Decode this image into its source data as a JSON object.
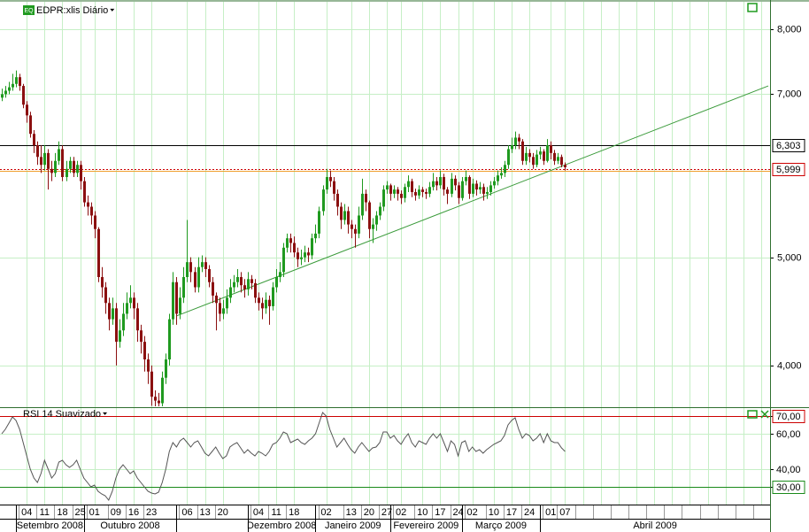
{
  "chart_data": [
    {
      "type": "candlestick",
      "title": "EDPR:xlis Diário",
      "log_scale": true,
      "grid": true,
      "up_color": "#1f9a1f",
      "down_color": "#8b1010",
      "categories": [
        null,
        null,
        null,
        null,
        null,
        null,
        null,
        "04",
        null,
        null,
        null,
        null,
        "11",
        null,
        null,
        null,
        null,
        "18",
        null,
        null,
        null,
        null,
        "25",
        null,
        null,
        null,
        "01",
        null,
        null,
        null,
        null,
        null,
        "09",
        null,
        null,
        null,
        null,
        "16",
        null,
        null,
        null,
        null,
        "23",
        null,
        null,
        null,
        null,
        null,
        null,
        null,
        null,
        null,
        "06",
        null,
        null,
        null,
        null,
        "13",
        null,
        null,
        null,
        null,
        "20",
        null,
        null,
        null,
        null,
        null,
        null,
        null,
        null,
        null,
        "04",
        null,
        null,
        null,
        null,
        "11",
        null,
        null,
        null,
        null,
        "18",
        null,
        null,
        null,
        null,
        null,
        null,
        null,
        null,
        "02",
        null,
        null,
        null,
        null,
        null,
        null,
        "13",
        null,
        null,
        null,
        null,
        "20",
        null,
        null,
        null,
        null,
        "27",
        null,
        null,
        null,
        "02",
        null,
        null,
        null,
        null,
        null,
        "10",
        null,
        null,
        null,
        null,
        "17",
        null,
        null,
        null,
        null,
        "24",
        null,
        null,
        null,
        "02",
        null,
        null,
        null,
        null,
        null,
        "10",
        null,
        null,
        null,
        null,
        "17",
        null,
        null,
        null,
        null,
        "24",
        null,
        null,
        null,
        null,
        null,
        "01",
        null,
        null,
        null,
        "07",
        null,
        null,
        null,
        null,
        null,
        null,
        null,
        null,
        null,
        null,
        null,
        null,
        null,
        null,
        null,
        null,
        null,
        null,
        null,
        null,
        null,
        null,
        null,
        null,
        null,
        null,
        null,
        null,
        null,
        null,
        null,
        null,
        null,
        null,
        null,
        null,
        null,
        null,
        null,
        null,
        null,
        null,
        null,
        null,
        null,
        null,
        null,
        null,
        null,
        null,
        null,
        null,
        null,
        null,
        null,
        null,
        null
      ],
      "months": [
        "Setembro 2008",
        "Outubro 2008",
        null,
        "Dezembro 2008",
        "Janeiro 2009",
        "Fevereiro 2009",
        "Março 2009",
        "Abril 2009"
      ],
      "open": [
        6.95,
        7.0,
        7.05,
        7.1,
        7.15,
        7.25,
        7.12,
        6.85,
        6.7,
        6.45,
        6.3,
        6.15,
        6.05,
        6.2,
        6.0,
        5.95,
        6.1,
        6.25,
        5.9,
        6.0,
        6.1,
        5.95,
        6.05,
        5.85,
        5.6,
        5.55,
        5.45,
        5.3,
        4.8,
        4.7,
        4.55,
        4.4,
        4.5,
        4.2,
        4.3,
        4.45,
        4.55,
        4.6,
        4.5,
        4.3,
        4.2,
        4.05,
        3.95,
        3.75,
        3.72,
        3.7,
        3.9,
        4.05,
        4.4,
        4.75,
        4.45,
        4.6,
        4.8,
        4.95,
        4.85,
        4.7,
        4.9,
        4.95,
        4.88,
        4.75,
        4.62,
        4.55,
        4.45,
        4.5,
        4.6,
        4.7,
        4.75,
        4.8,
        4.72,
        4.68,
        4.78,
        4.74,
        4.6,
        4.55,
        4.5,
        4.58,
        4.52,
        4.7,
        4.8,
        4.85,
        5.1,
        5.2,
        5.15,
        5.05,
        4.98,
        5.0,
        5.05,
        5.02,
        5.2,
        5.25,
        5.5,
        5.75,
        5.9,
        5.85,
        5.7,
        5.55,
        5.4,
        5.5,
        5.35,
        5.3,
        5.25,
        5.45,
        5.7,
        5.6,
        5.3,
        5.35,
        5.45,
        5.55,
        5.75,
        5.8,
        5.7,
        5.75,
        5.7,
        5.65,
        5.78,
        5.85,
        5.72,
        5.68,
        5.75,
        5.72,
        5.7,
        5.78,
        5.85,
        5.8,
        5.9,
        5.75,
        5.7,
        5.88,
        5.8,
        5.65,
        5.85,
        5.9,
        5.7,
        5.82,
        5.75,
        5.78,
        5.7,
        5.72,
        5.8,
        5.85,
        5.92,
        5.95,
        6.05,
        6.25,
        6.3,
        6.4,
        6.35,
        6.1,
        6.2,
        6.15,
        6.05,
        6.18,
        6.22,
        6.1,
        6.3,
        6.2,
        6.1,
        6.15,
        6.05,
        null,
        null,
        null,
        null,
        null,
        null,
        null,
        null,
        null,
        null,
        null,
        null,
        null,
        null,
        null,
        null,
        null,
        null,
        null,
        null,
        null,
        null,
        null,
        null,
        null,
        null,
        null,
        null,
        null,
        null,
        null,
        null,
        null,
        null,
        null,
        null,
        null,
        null,
        null,
        null,
        null,
        null,
        null,
        null,
        null,
        null,
        null,
        null,
        null,
        null,
        null,
        null,
        null,
        null,
        null,
        null,
        null
      ],
      "high": [
        7.08,
        7.12,
        7.18,
        7.3,
        7.35,
        7.3,
        7.15,
        6.9,
        6.75,
        6.5,
        6.35,
        6.3,
        6.3,
        6.25,
        6.1,
        6.2,
        6.35,
        6.3,
        6.1,
        6.15,
        6.15,
        6.1,
        6.1,
        5.9,
        5.68,
        5.6,
        5.5,
        5.32,
        4.9,
        4.75,
        4.6,
        4.6,
        4.55,
        4.4,
        4.55,
        4.65,
        4.72,
        4.65,
        4.55,
        4.35,
        4.25,
        4.1,
        4.0,
        3.8,
        3.78,
        3.95,
        4.1,
        4.45,
        4.85,
        4.8,
        4.7,
        4.9,
        5.4,
        5.0,
        4.9,
        5.0,
        5.02,
        5.0,
        4.92,
        4.8,
        4.65,
        4.6,
        4.58,
        4.68,
        4.78,
        4.82,
        4.88,
        4.85,
        4.78,
        4.85,
        4.82,
        4.78,
        4.65,
        4.6,
        4.65,
        4.62,
        4.75,
        4.88,
        4.95,
        5.15,
        5.25,
        5.25,
        5.22,
        5.1,
        5.08,
        5.12,
        5.1,
        5.25,
        5.35,
        5.55,
        5.8,
        6.0,
        5.98,
        5.9,
        5.75,
        5.6,
        5.58,
        5.55,
        5.4,
        5.35,
        5.55,
        5.88,
        5.75,
        5.62,
        5.42,
        5.5,
        5.6,
        5.8,
        5.85,
        5.82,
        5.8,
        5.78,
        5.74,
        5.82,
        5.92,
        5.88,
        5.76,
        5.8,
        5.78,
        5.76,
        5.84,
        5.95,
        5.9,
        5.98,
        5.94,
        5.78,
        5.95,
        5.92,
        5.84,
        5.9,
        5.98,
        5.92,
        5.88,
        5.86,
        5.84,
        5.82,
        5.78,
        5.85,
        5.9,
        5.98,
        6.02,
        6.1,
        6.3,
        6.4,
        6.48,
        6.45,
        6.38,
        6.28,
        6.25,
        6.2,
        6.24,
        6.28,
        6.25,
        6.38,
        6.35,
        6.24,
        6.2,
        6.18,
        6.08,
        null,
        null,
        null,
        null,
        null,
        null,
        null,
        null,
        null,
        null,
        null,
        null,
        null,
        null,
        null,
        null,
        null,
        null,
        null,
        null,
        null,
        null,
        null,
        null,
        null,
        null,
        null,
        null,
        null,
        null,
        null,
        null,
        null,
        null,
        null,
        null,
        null,
        null,
        null,
        null,
        null,
        null,
        null,
        null,
        null,
        null,
        null,
        null,
        null,
        null,
        null,
        null,
        null,
        null,
        null,
        null,
        null
      ],
      "low": [
        6.9,
        6.95,
        7.0,
        7.05,
        7.1,
        7.05,
        6.8,
        6.6,
        6.4,
        6.2,
        6.05,
        5.95,
        5.98,
        5.75,
        5.85,
        5.9,
        6.05,
        5.85,
        5.85,
        5.95,
        5.9,
        5.9,
        5.75,
        5.55,
        5.45,
        5.35,
        5.2,
        4.75,
        4.6,
        4.45,
        4.3,
        4.35,
        4.0,
        4.15,
        4.25,
        4.4,
        4.5,
        4.4,
        4.2,
        4.1,
        3.95,
        3.85,
        3.68,
        3.66,
        3.6,
        3.65,
        3.85,
        4.0,
        4.35,
        4.35,
        4.4,
        4.55,
        4.75,
        4.75,
        4.65,
        4.65,
        4.85,
        4.8,
        4.7,
        4.55,
        4.3,
        4.38,
        4.4,
        4.45,
        4.55,
        4.65,
        4.7,
        4.65,
        4.6,
        4.62,
        4.68,
        4.55,
        4.48,
        4.4,
        4.45,
        4.35,
        4.48,
        4.65,
        4.75,
        4.8,
        5.05,
        5.05,
        5.0,
        4.9,
        4.92,
        4.95,
        4.95,
        4.98,
        5.15,
        5.2,
        5.45,
        5.7,
        5.78,
        5.62,
        5.45,
        5.3,
        5.35,
        5.25,
        5.2,
        5.1,
        5.2,
        5.4,
        5.5,
        5.2,
        5.15,
        5.28,
        5.4,
        5.5,
        5.7,
        5.62,
        5.65,
        5.62,
        5.58,
        5.6,
        5.72,
        5.66,
        5.62,
        5.64,
        5.66,
        5.64,
        5.66,
        5.74,
        5.74,
        5.76,
        5.68,
        5.58,
        5.66,
        5.74,
        5.58,
        5.62,
        5.8,
        5.64,
        5.66,
        5.68,
        5.7,
        5.62,
        5.64,
        5.68,
        5.76,
        5.8,
        5.88,
        5.9,
        6.0,
        6.2,
        6.25,
        6.25,
        6.05,
        6.05,
        6.08,
        6.0,
        6.02,
        6.12,
        6.05,
        6.08,
        6.12,
        6.05,
        6.06,
        6.02,
        5.98,
        null,
        null,
        null,
        null,
        null,
        null,
        null,
        null,
        null,
        null,
        null,
        null,
        null,
        null,
        null,
        null,
        null,
        null,
        null,
        null,
        null,
        null,
        null,
        null,
        null,
        null,
        null,
        null,
        null,
        null,
        null,
        null,
        null,
        null,
        null,
        null,
        null,
        null,
        null,
        null,
        null,
        null,
        null,
        null,
        null,
        null,
        null,
        null,
        null,
        null,
        null,
        null,
        null,
        null,
        null,
        null,
        null
      ],
      "close": [
        7.0,
        7.05,
        7.1,
        7.15,
        7.25,
        7.12,
        6.85,
        6.7,
        6.45,
        6.3,
        6.15,
        6.05,
        6.2,
        6.0,
        5.95,
        6.1,
        6.25,
        5.9,
        6.0,
        6.1,
        5.95,
        6.05,
        5.85,
        5.6,
        5.55,
        5.45,
        5.3,
        4.8,
        4.7,
        4.55,
        4.4,
        4.5,
        4.2,
        4.3,
        4.45,
        4.55,
        4.6,
        4.5,
        4.3,
        4.2,
        4.05,
        3.95,
        3.75,
        3.72,
        3.7,
        3.9,
        4.05,
        4.4,
        4.75,
        4.45,
        4.6,
        4.8,
        4.95,
        4.85,
        4.7,
        4.9,
        4.95,
        4.88,
        4.75,
        4.62,
        4.55,
        4.45,
        4.5,
        4.6,
        4.7,
        4.75,
        4.8,
        4.72,
        4.68,
        4.78,
        4.74,
        4.6,
        4.55,
        4.5,
        4.58,
        4.52,
        4.7,
        4.8,
        4.85,
        5.1,
        5.2,
        5.15,
        5.05,
        4.98,
        5.0,
        5.05,
        5.02,
        5.2,
        5.25,
        5.5,
        5.75,
        5.9,
        5.85,
        5.7,
        5.55,
        5.4,
        5.5,
        5.35,
        5.3,
        5.25,
        5.45,
        5.7,
        5.6,
        5.3,
        5.35,
        5.45,
        5.55,
        5.75,
        5.8,
        5.7,
        5.75,
        5.7,
        5.65,
        5.78,
        5.85,
        5.72,
        5.68,
        5.75,
        5.72,
        5.7,
        5.78,
        5.85,
        5.8,
        5.9,
        5.75,
        5.7,
        5.88,
        5.8,
        5.65,
        5.85,
        5.9,
        5.7,
        5.82,
        5.75,
        5.78,
        5.7,
        5.72,
        5.8,
        5.85,
        5.92,
        5.95,
        6.05,
        6.25,
        6.3,
        6.4,
        6.35,
        6.1,
        6.2,
        6.15,
        6.05,
        6.18,
        6.22,
        6.1,
        6.3,
        6.2,
        6.1,
        6.15,
        6.05,
        6.02,
        null,
        null,
        null,
        null,
        null,
        null,
        null,
        null,
        null,
        null,
        null,
        null,
        null,
        null,
        null,
        null,
        null,
        null,
        null,
        null,
        null,
        null,
        null,
        null,
        null,
        null,
        null,
        null,
        null,
        null,
        null,
        null,
        null,
        null,
        null,
        null,
        null,
        null,
        null,
        null,
        null,
        null,
        null,
        null,
        null,
        null,
        null,
        null,
        null,
        null,
        null,
        null,
        null,
        null,
        null,
        null,
        null
      ],
      "ylim": [
        3.67,
        8.47
      ],
      "yticks": [
        {
          "value": 4,
          "label": "4,000"
        },
        {
          "value": 5,
          "label": "5,000"
        },
        {
          "value": 7,
          "label": "7,000"
        },
        {
          "value": 8,
          "label": "8,000"
        }
      ],
      "levels": [
        {
          "value": 6.303,
          "label": "6,303",
          "color": "#000000"
        },
        {
          "value": 5.999,
          "label": "5,999",
          "color": "#cc0000"
        }
      ],
      "trendline": {
        "x": [
          49,
          215
        ],
        "y": [
          4.43,
          7.12
        ],
        "color": "#3a9a3a"
      }
    },
    {
      "type": "line",
      "title": "RSI 14 Suavizado",
      "color": "#555555",
      "grid": true,
      "values": [
        60,
        62.5,
        66,
        69.5,
        67.5,
        62.5,
        55,
        47.5,
        40,
        35,
        32.5,
        37.5,
        45,
        40,
        35,
        37.5,
        44,
        45,
        42.5,
        41,
        42.5,
        45,
        40,
        35,
        32.5,
        30,
        31,
        27.5,
        26,
        25,
        22.5,
        27.5,
        35,
        40,
        42.5,
        40,
        37.5,
        39,
        35,
        32.5,
        30,
        27.5,
        26.5,
        26,
        27,
        32.5,
        40,
        50,
        55,
        52.5,
        56,
        57.5,
        55,
        52.5,
        55,
        56,
        52.5,
        49,
        47.5,
        50,
        52.5,
        49,
        46,
        47.5,
        52.5,
        54,
        55,
        52,
        49,
        51,
        49,
        47.5,
        50,
        49,
        47.5,
        50,
        54,
        55,
        57.5,
        61,
        60,
        55,
        56,
        57,
        55,
        54,
        56,
        57.5,
        60,
        66,
        72,
        70,
        62.5,
        57.5,
        52.5,
        55,
        57.5,
        54,
        51,
        49,
        52.5,
        55,
        52.5,
        50,
        52,
        52.5,
        55,
        61,
        61,
        57.5,
        59,
        56,
        54,
        57.5,
        60,
        55,
        52.5,
        56,
        55,
        54,
        57.5,
        60,
        57.5,
        60,
        55,
        50,
        56,
        54,
        47.5,
        55,
        56,
        50,
        52.5,
        50,
        51,
        49,
        51,
        52.5,
        54,
        55,
        56,
        59,
        65,
        67.5,
        69,
        62.5,
        57.5,
        60,
        59,
        56,
        57.5,
        60,
        55,
        60,
        56,
        55,
        55,
        52,
        50,
        null,
        null,
        null,
        null,
        null,
        null,
        null,
        null,
        null,
        null,
        null,
        null,
        null,
        null,
        null,
        null,
        null,
        null,
        null,
        null,
        null,
        null,
        null,
        null,
        null,
        null,
        null,
        null,
        null,
        null,
        null,
        null,
        null,
        null,
        null,
        null,
        null,
        null,
        null,
        null,
        null,
        null,
        null,
        null,
        null,
        null,
        null,
        null,
        null,
        null,
        null,
        null,
        null,
        null,
        null,
        null,
        null
      ],
      "ylim": [
        20,
        74.5
      ],
      "yticks": [
        {
          "value": 30,
          "label": "30,00"
        },
        {
          "value": 40,
          "label": "40,00"
        },
        {
          "value": 60,
          "label": "60,00"
        },
        {
          "value": 70,
          "label": "70,00"
        }
      ],
      "levels": [
        {
          "value": 70,
          "color": "#cc0000"
        },
        {
          "value": 30,
          "color": "#1a8a1a"
        }
      ]
    }
  ]
}
